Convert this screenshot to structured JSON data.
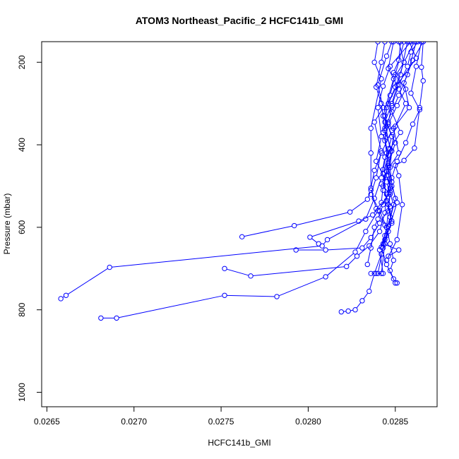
{
  "chart_data": {
    "type": "scatter",
    "title": "ATOM3 Northeast_Pacific_2 HCFC141b_GMI",
    "xlabel": "HCFC141b_GMI",
    "ylabel": "Pressure (mbar)",
    "xlim": [
      0.02647,
      0.02874
    ],
    "ylim": [
      1035,
      150
    ],
    "y_reversed": true,
    "x_ticks": [
      0.0265,
      0.027,
      0.0275,
      0.028,
      0.0285
    ],
    "x_tick_labels": [
      "0.0265",
      "0.0270",
      "0.0275",
      "0.0280",
      "0.0285"
    ],
    "y_ticks": [
      200,
      400,
      600,
      800,
      1000
    ],
    "y_tick_labels": [
      "200",
      "400",
      "600",
      "800",
      "1000"
    ],
    "series_color": "#0000ff",
    "marker": "open-circle",
    "series": [
      {
        "points": [
          [
            0.02866,
            150
          ],
          [
            0.0286,
            195
          ],
          [
            0.02855,
            250
          ],
          [
            0.02858,
            310
          ],
          [
            0.02849,
            360
          ],
          [
            0.02852,
            420
          ],
          [
            0.02845,
            465
          ],
          [
            0.02843,
            510
          ],
          [
            0.02847,
            550
          ],
          [
            0.02841,
            590
          ],
          [
            0.02836,
            625
          ],
          [
            0.02831,
            650
          ],
          [
            0.0281,
            655
          ],
          [
            0.02793,
            655
          ]
        ]
      },
      {
        "points": [
          [
            0.02858,
            150
          ],
          [
            0.02862,
            190
          ],
          [
            0.02851,
            255
          ],
          [
            0.02846,
            300
          ],
          [
            0.02853,
            370
          ],
          [
            0.02844,
            430
          ],
          [
            0.02842,
            480
          ],
          [
            0.02838,
            530
          ],
          [
            0.02833,
            580
          ],
          [
            0.02811,
            630
          ],
          [
            0.02808,
            645
          ],
          [
            0.02686,
            697
          ],
          [
            0.02661,
            765
          ],
          [
            0.02658,
            773
          ]
        ]
      },
      {
        "points": [
          [
            0.02852,
            150
          ],
          [
            0.02855,
            200
          ],
          [
            0.02849,
            240
          ],
          [
            0.02843,
            330
          ],
          [
            0.0285,
            395
          ],
          [
            0.02846,
            450
          ],
          [
            0.02847,
            515
          ],
          [
            0.0284,
            560
          ],
          [
            0.02833,
            610
          ],
          [
            0.02827,
            660
          ],
          [
            0.0281,
            720
          ],
          [
            0.02782,
            768
          ],
          [
            0.02752,
            765
          ],
          [
            0.0269,
            820
          ],
          [
            0.02681,
            820
          ]
        ]
      },
      {
        "points": [
          [
            0.02865,
            150
          ],
          [
            0.02862,
            210
          ],
          [
            0.02859,
            275
          ],
          [
            0.02864,
            315
          ],
          [
            0.0286,
            350
          ],
          [
            0.02856,
            395
          ],
          [
            0.02851,
            440
          ],
          [
            0.02848,
            480
          ],
          [
            0.02845,
            520
          ],
          [
            0.02844,
            565
          ],
          [
            0.02841,
            610
          ],
          [
            0.02835,
            645
          ],
          [
            0.02828,
            670
          ],
          [
            0.02822,
            695
          ],
          [
            0.02767,
            718
          ],
          [
            0.02752,
            700
          ]
        ]
      },
      {
        "points": [
          [
            0.02857,
            150
          ],
          [
            0.02853,
            230
          ],
          [
            0.02848,
            300
          ],
          [
            0.02844,
            345
          ],
          [
            0.02847,
            410
          ],
          [
            0.02843,
            470
          ],
          [
            0.02845,
            535
          ],
          [
            0.02848,
            590
          ],
          [
            0.02844,
            630
          ],
          [
            0.02842,
            665
          ],
          [
            0.02838,
            712
          ],
          [
            0.02835,
            755
          ],
          [
            0.02831,
            778
          ],
          [
            0.02827,
            800
          ],
          [
            0.02823,
            803
          ],
          [
            0.02819,
            805
          ]
        ]
      },
      {
        "points": [
          [
            0.02848,
            150
          ],
          [
            0.02845,
            185
          ],
          [
            0.0284,
            255
          ],
          [
            0.02843,
            310
          ],
          [
            0.02838,
            345
          ],
          [
            0.02842,
            415
          ],
          [
            0.02839,
            480
          ],
          [
            0.02836,
            520
          ],
          [
            0.02841,
            560
          ],
          [
            0.02845,
            600
          ],
          [
            0.02847,
            640
          ],
          [
            0.02849,
            680
          ],
          [
            0.02847,
            705
          ],
          [
            0.02849,
            725
          ],
          [
            0.02851,
            735
          ]
        ]
      },
      {
        "points": [
          [
            0.02862,
            150
          ],
          [
            0.02857,
            230
          ],
          [
            0.02852,
            280
          ],
          [
            0.02848,
            320
          ],
          [
            0.02843,
            370
          ],
          [
            0.02846,
            425
          ],
          [
            0.02848,
            490
          ],
          [
            0.02846,
            545
          ],
          [
            0.02848,
            585
          ],
          [
            0.02845,
            620
          ],
          [
            0.02842,
            648
          ],
          [
            0.02845,
            690
          ],
          [
            0.0285,
            735
          ]
        ]
      },
      {
        "points": [
          [
            0.02859,
            150
          ],
          [
            0.02847,
            210
          ],
          [
            0.02843,
            258
          ],
          [
            0.0284,
            310
          ],
          [
            0.02842,
            380
          ],
          [
            0.02839,
            440
          ],
          [
            0.02845,
            490
          ],
          [
            0.02849,
            545
          ],
          [
            0.02847,
            575
          ],
          [
            0.02844,
            620
          ],
          [
            0.02841,
            655
          ],
          [
            0.02843,
            712
          ],
          [
            0.02839,
            712
          ],
          [
            0.02836,
            712
          ]
        ]
      },
      {
        "points": [
          [
            0.02861,
            150
          ],
          [
            0.02855,
            200
          ],
          [
            0.0285,
            260
          ],
          [
            0.02845,
            310
          ],
          [
            0.02844,
            360
          ],
          [
            0.02845,
            420
          ],
          [
            0.02843,
            460
          ],
          [
            0.02848,
            500
          ],
          [
            0.02851,
            540
          ],
          [
            0.02846,
            610
          ],
          [
            0.02844,
            640
          ],
          [
            0.02842,
            712
          ]
        ]
      },
      {
        "points": [
          [
            0.02849,
            150
          ],
          [
            0.02846,
            215
          ],
          [
            0.02852,
            265
          ],
          [
            0.02856,
            300
          ],
          [
            0.0285,
            355
          ],
          [
            0.02846,
            455
          ],
          [
            0.0285,
            530
          ],
          [
            0.02846,
            598
          ],
          [
            0.02843,
            650
          ],
          [
            0.0284,
            712
          ]
        ]
      },
      {
        "points": [
          [
            0.02855,
            150
          ],
          [
            0.0285,
            230
          ],
          [
            0.02847,
            280
          ],
          [
            0.02844,
            330
          ],
          [
            0.02848,
            380
          ],
          [
            0.02846,
            410
          ],
          [
            0.02845,
            475
          ],
          [
            0.02847,
            505
          ],
          [
            0.02843,
            545
          ],
          [
            0.0284,
            580
          ],
          [
            0.02838,
            600
          ],
          [
            0.02836,
            650
          ],
          [
            0.02834,
            690
          ]
        ]
      },
      {
        "points": [
          [
            0.0284,
            150
          ],
          [
            0.02838,
            200
          ],
          [
            0.02842,
            240
          ],
          [
            0.02836,
            360
          ],
          [
            0.02836,
            420
          ],
          [
            0.02836,
            510
          ],
          [
            0.02834,
            532
          ],
          [
            0.02824,
            563
          ],
          [
            0.02792,
            596
          ],
          [
            0.02762,
            623
          ]
        ]
      },
      {
        "points": [
          [
            0.02853,
            150
          ],
          [
            0.02852,
            195
          ],
          [
            0.02849,
            225
          ],
          [
            0.02856,
            265
          ],
          [
            0.02851,
            305
          ],
          [
            0.02846,
            350
          ],
          [
            0.02844,
            390
          ],
          [
            0.02846,
            445
          ],
          [
            0.02843,
            500
          ],
          [
            0.02842,
            540
          ],
          [
            0.02837,
            570
          ],
          [
            0.02829,
            585
          ],
          [
            0.02801,
            624
          ],
          [
            0.02806,
            640
          ]
        ]
      },
      {
        "points": [
          [
            0.02866,
            150
          ],
          [
            0.02865,
            212
          ],
          [
            0.02866,
            245
          ],
          [
            0.02864,
            310
          ],
          [
            0.02861,
            408
          ],
          [
            0.02855,
            438
          ],
          [
            0.0285,
            450
          ],
          [
            0.02852,
            475
          ],
          [
            0.02854,
            545
          ],
          [
            0.02851,
            630
          ],
          [
            0.02845,
            680
          ]
        ]
      },
      {
        "points": [
          [
            0.02844,
            150
          ],
          [
            0.02842,
            200
          ],
          [
            0.02839,
            260
          ],
          [
            0.02842,
            300
          ],
          [
            0.02844,
            365
          ],
          [
            0.02848,
            415
          ],
          [
            0.02847,
            455
          ],
          [
            0.02842,
            495
          ],
          [
            0.02847,
            520
          ],
          [
            0.02846,
            560
          ],
          [
            0.02845,
            600
          ],
          [
            0.02843,
            640
          ],
          [
            0.02852,
            655
          ],
          [
            0.02846,
            670
          ]
        ]
      },
      {
        "points": [
          [
            0.02863,
            150
          ],
          [
            0.02859,
            175
          ],
          [
            0.02857,
            210
          ],
          [
            0.02852,
            255
          ],
          [
            0.02848,
            305
          ],
          [
            0.02846,
            345
          ],
          [
            0.02848,
            365
          ],
          [
            0.02842,
            420
          ],
          [
            0.02838,
            462
          ],
          [
            0.02836,
            505
          ],
          [
            0.02839,
            555
          ],
          [
            0.02844,
            595
          ]
        ]
      }
    ]
  }
}
